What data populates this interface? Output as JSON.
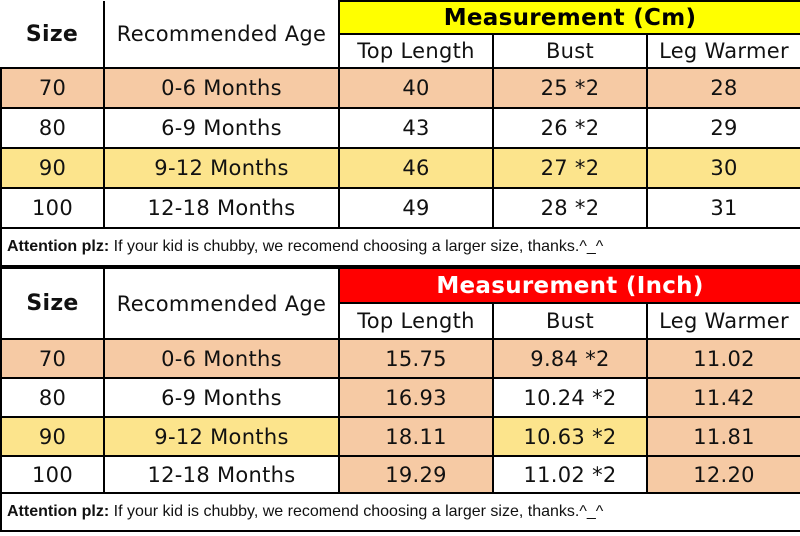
{
  "colors": {
    "header_yellow": "#FFFF00",
    "header_red": "#FF0000",
    "row_peach": "#F6CAA4",
    "row_yellow": "#FCE48C",
    "row_white": "#FFFFFF",
    "border": "#000000"
  },
  "shared_headers": {
    "size": "Size",
    "age": "Recommended Age"
  },
  "attention": {
    "bold": "Attention plz:",
    "rest": " If your kid is chubby, we recomend choosing a larger size, thanks.^_^"
  },
  "chart_data": [
    {
      "type": "table",
      "title": "Measurement (Cm)",
      "title_bg": "#FFFF00",
      "columns": [
        "Size",
        "Recommended Age",
        "Top Length",
        "Bust",
        "Leg Warmer"
      ],
      "rows": [
        [
          "70",
          "0-6 Months",
          "40",
          "25 *2",
          "28"
        ],
        [
          "80",
          "6-9 Months",
          "43",
          "26 *2",
          "29"
        ],
        [
          "90",
          "9-12 Months",
          "46",
          "27 *2",
          "30"
        ],
        [
          "100",
          "12-18 Months",
          "49",
          "28 *2",
          "31"
        ]
      ],
      "footnote": "Attention plz: If your kid is chubby, we recomend choosing a larger size, thanks.^_^"
    },
    {
      "type": "table",
      "title": "Measurement (Inch)",
      "title_bg": "#FF0000",
      "columns": [
        "Size",
        "Recommended Age",
        "Top Length",
        "Bust",
        "Leg Warmer"
      ],
      "rows": [
        [
          "70",
          "0-6 Months",
          "15.75",
          "9.84 *2",
          "11.02"
        ],
        [
          "80",
          "6-9 Months",
          "16.93",
          "10.24 *2",
          "11.42"
        ],
        [
          "90",
          "9-12 Months",
          "18.11",
          "10.63 *2",
          "11.81"
        ],
        [
          "100",
          "12-18 Months",
          "19.29",
          "11.02 *2",
          "12.20"
        ]
      ],
      "footnote": "Attention plz: If your kid is chubby, we recomend choosing a larger size, thanks.^_^"
    }
  ]
}
